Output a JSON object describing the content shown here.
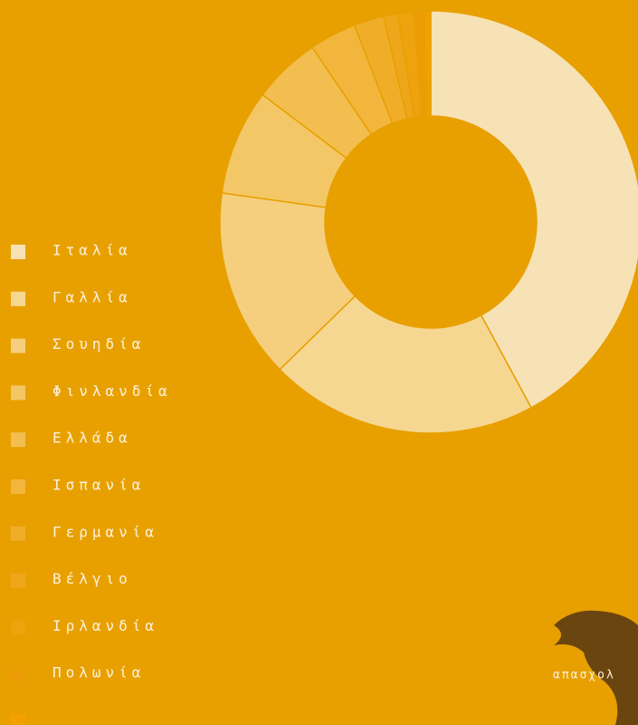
{
  "chart_data": {
    "type": "donut",
    "categories": [
      "Ιταλία",
      "Γαλλία",
      "Σουηδία",
      "Φινλανδία",
      "Ελλάδα",
      "Ισπανία",
      "Γερμανία",
      "Βέλγιο",
      "Ιρλανδία",
      "Πολωνία",
      null
    ],
    "values": [
      42.1,
      20.6,
      14.5,
      8.1,
      5.2,
      3.6,
      2.3,
      1.1,
      1.2,
      0.8,
      0.5
    ],
    "colors": [
      "#f7e2b6",
      "#f6d792",
      "#f5cf7e",
      "#f4c766",
      "#f3be50",
      "#f2b63c",
      "#f0ae28",
      "#eea71a",
      "#eda20e",
      "#ec9d06",
      "#f2a100"
    ],
    "annotation": "απασχολ"
  }
}
